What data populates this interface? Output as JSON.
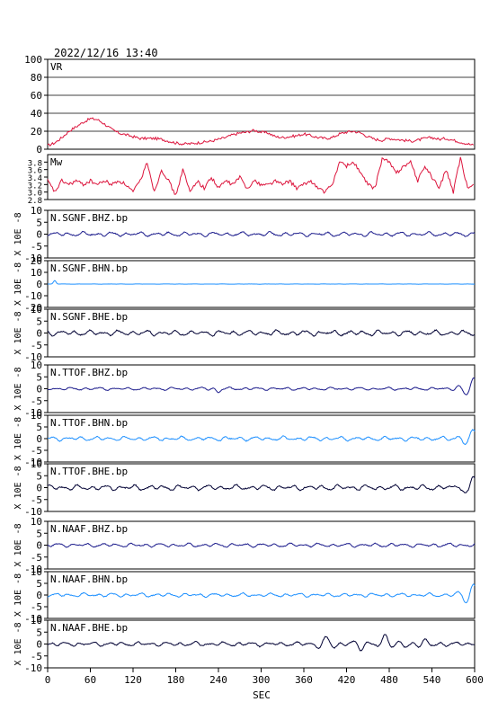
{
  "header": {
    "datetime": "2022/12/16  13:40"
  },
  "chart_data": {
    "type": "line",
    "xlabel": "SEC",
    "xlim": [
      0,
      600
    ],
    "xticks": [
      0,
      60,
      120,
      180,
      240,
      300,
      360,
      420,
      480,
      540,
      600
    ],
    "panels": [
      {
        "id": "vr",
        "label": "VR",
        "ylim": [
          0,
          100
        ],
        "yticks": [
          0,
          20,
          40,
          60,
          80,
          100
        ],
        "grid": true,
        "color": "#dc143c",
        "x": [
          0,
          10,
          20,
          30,
          40,
          50,
          60,
          70,
          80,
          90,
          100,
          110,
          120,
          130,
          140,
          150,
          160,
          170,
          180,
          190,
          200,
          210,
          220,
          230,
          240,
          250,
          260,
          270,
          280,
          290,
          300,
          310,
          320,
          330,
          340,
          350,
          360,
          370,
          380,
          390,
          400,
          410,
          420,
          430,
          440,
          450,
          460,
          470,
          480,
          490,
          500,
          510,
          520,
          530,
          540,
          550,
          560,
          570,
          580,
          590,
          600
        ],
        "y": [
          4,
          7,
          13,
          20,
          25,
          30,
          34,
          33,
          28,
          22,
          18,
          16,
          14,
          12,
          12,
          12,
          11,
          9,
          7,
          6,
          6,
          7,
          8,
          9,
          11,
          13,
          16,
          18,
          19,
          21,
          19,
          18,
          14,
          13,
          14,
          15,
          17,
          15,
          13,
          12,
          13,
          17,
          19,
          20,
          18,
          14,
          11,
          10,
          12,
          11,
          10,
          9,
          10,
          12,
          13,
          11,
          12,
          10,
          8,
          6,
          4
        ]
      },
      {
        "id": "mw",
        "label": "Mw",
        "ylim": [
          2.8,
          4.0
        ],
        "yticks": [
          2.8,
          3.0,
          3.2,
          3.4,
          3.6,
          3.8
        ],
        "grid": false,
        "color": "#dc143c",
        "x": [
          0,
          10,
          20,
          30,
          40,
          50,
          60,
          70,
          80,
          90,
          100,
          110,
          120,
          130,
          140,
          150,
          160,
          170,
          180,
          190,
          200,
          210,
          220,
          230,
          240,
          250,
          260,
          270,
          280,
          290,
          300,
          310,
          320,
          330,
          340,
          350,
          360,
          370,
          380,
          390,
          400,
          410,
          420,
          430,
          440,
          450,
          460,
          470,
          480,
          490,
          500,
          510,
          520,
          530,
          540,
          550,
          560,
          570,
          580,
          590,
          600
        ],
        "y": [
          3.3,
          3.0,
          3.3,
          3.2,
          3.3,
          3.2,
          3.3,
          3.2,
          3.3,
          3.2,
          3.3,
          3.2,
          3.0,
          3.3,
          3.8,
          3.0,
          3.6,
          3.3,
          2.9,
          3.6,
          3.0,
          3.3,
          3.1,
          3.4,
          3.1,
          3.3,
          3.2,
          3.4,
          3.1,
          3.3,
          3.2,
          3.2,
          3.3,
          3.2,
          3.3,
          3.1,
          3.2,
          3.3,
          3.1,
          3.0,
          3.2,
          3.8,
          3.7,
          3.8,
          3.5,
          3.2,
          3.1,
          3.9,
          3.8,
          3.5,
          3.7,
          3.8,
          3.3,
          3.7,
          3.4,
          3.1,
          3.6,
          3.0,
          3.9,
          3.1,
          3.2
        ]
      },
      {
        "id": "sgnf-bhz",
        "label": "N.SGNF.BHZ.bp",
        "ylim": [
          -10,
          10
        ],
        "yticks": [
          -10,
          -5,
          0,
          5,
          10
        ],
        "color": "#1c1c8c",
        "amp": 0.9,
        "end_burst": 0,
        "bumps": []
      },
      {
        "id": "sgnf-bhn",
        "label": "N.SGNF.BHN.bp",
        "ylim": [
          -20,
          20
        ],
        "yticks": [
          -20,
          -10,
          0,
          10,
          20
        ],
        "color": "#1e90ff",
        "amp": 0.1,
        "end_burst": 0,
        "bumps": [
          [
            10,
            3,
            2
          ]
        ]
      },
      {
        "id": "sgnf-bhe",
        "label": "N.SGNF.BHE.bp",
        "ylim": [
          -10,
          10
        ],
        "yticks": [
          -10,
          -5,
          0,
          5,
          10
        ],
        "color": "#000033",
        "amp": 1.1,
        "end_burst": 0,
        "bumps": []
      },
      {
        "id": "ttof-bhz",
        "label": "N.TTOF.BHZ.bp",
        "ylim": [
          -10,
          10
        ],
        "yticks": [
          -10,
          -5,
          0,
          5,
          10
        ],
        "color": "#1c1c8c",
        "amp": 0.6,
        "end_burst": 4,
        "bumps": [
          [
            240,
            -1.5,
            4
          ]
        ]
      },
      {
        "id": "ttof-bhn",
        "label": "N.TTOF.BHN.bp",
        "ylim": [
          -10,
          10
        ],
        "yticks": [
          -10,
          -5,
          0,
          5,
          10
        ],
        "color": "#1e90ff",
        "amp": 0.9,
        "end_burst": 3.5,
        "bumps": []
      },
      {
        "id": "ttof-bhe",
        "label": "N.TTOF.BHE.bp",
        "ylim": [
          -10,
          10
        ],
        "yticks": [
          -10,
          -5,
          0,
          5,
          10
        ],
        "color": "#000033",
        "amp": 1.1,
        "end_burst": 4.5,
        "bumps": []
      },
      {
        "id": "naaf-bhz",
        "label": "N.NAAF.BHZ.bp",
        "ylim": [
          -10,
          10
        ],
        "yticks": [
          -10,
          -5,
          0,
          5,
          10
        ],
        "color": "#1c1c8c",
        "amp": 0.8,
        "end_burst": 0,
        "bumps": []
      },
      {
        "id": "naaf-bhn",
        "label": "N.NAAF.BHN.bp",
        "ylim": [
          -10,
          10
        ],
        "yticks": [
          -10,
          -5,
          0,
          5,
          10
        ],
        "color": "#1e90ff",
        "amp": 0.8,
        "end_burst": 4,
        "bumps": []
      },
      {
        "id": "naaf-bhe",
        "label": "N.NAAF.BHE.bp",
        "ylim": [
          -10,
          10
        ],
        "yticks": [
          -10,
          -5,
          0,
          5,
          10
        ],
        "color": "#000033",
        "amp": 0.9,
        "end_burst": 0,
        "bumps": [
          [
            392,
            2.5,
            9
          ],
          [
            440,
            -2,
            7
          ],
          [
            475,
            4,
            6
          ],
          [
            505,
            -1.5,
            8
          ],
          [
            530,
            1.5,
            9
          ]
        ]
      }
    ],
    "wave_unit_label": "X 10E -8"
  }
}
